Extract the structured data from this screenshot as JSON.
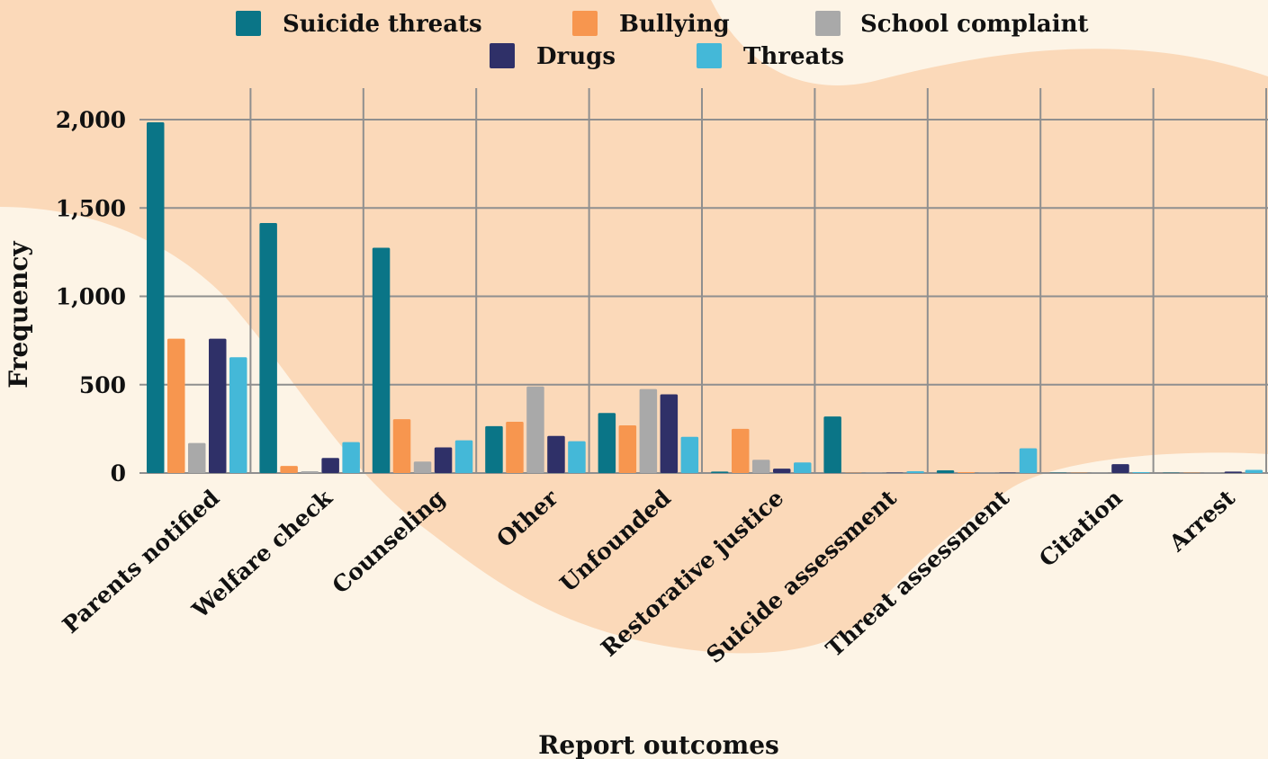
{
  "chart_data": {
    "type": "bar",
    "xlabel": "Report outcomes",
    "ylabel": "Frequency",
    "ylim": [
      0,
      2200
    ],
    "yticks": [
      0,
      500,
      1000,
      1500,
      2000
    ],
    "ytick_labels": [
      "0",
      "500",
      "1,000",
      "1,500",
      "2,000"
    ],
    "grid": true,
    "legend_position": "top-center",
    "categories": [
      "Parents notified",
      "Welfare check",
      "Counseling",
      "Other",
      "Unfounded",
      "Restorative justice",
      "Suicide assessment",
      "Threat assessment",
      "Citation",
      "Arrest"
    ],
    "series": [
      {
        "name": "Suicide threats",
        "color": "#0a7587",
        "values": [
          1985,
          1415,
          1275,
          265,
          340,
          8,
          320,
          15,
          2,
          2
        ]
      },
      {
        "name": "Bullying",
        "color": "#f7964f",
        "values": [
          760,
          40,
          305,
          290,
          270,
          250,
          2,
          5,
          2,
          2
        ]
      },
      {
        "name": "School complaint",
        "color": "#a9a9a9",
        "values": [
          170,
          10,
          65,
          490,
          475,
          75,
          2,
          2,
          2,
          2
        ]
      },
      {
        "name": "Drugs",
        "color": "#2f3068",
        "values": [
          760,
          85,
          145,
          210,
          445,
          25,
          2,
          2,
          50,
          8
        ]
      },
      {
        "name": "Threats",
        "color": "#44b8d8",
        "values": [
          655,
          175,
          185,
          180,
          205,
          60,
          10,
          140,
          5,
          18
        ]
      }
    ]
  },
  "colors": {
    "background": "#fdf4e6",
    "blob": "#fbd9b9",
    "grid": "#8f8f8f"
  }
}
